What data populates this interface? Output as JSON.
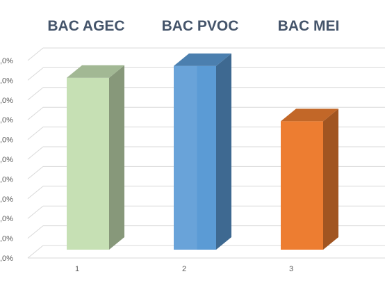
{
  "chart_data": {
    "type": "bar",
    "categories": [
      "1",
      "2",
      "3"
    ],
    "series_labels": [
      "BAC AGEC",
      "BAC PVOC",
      "BAC MEI"
    ],
    "values": [
      8.7,
      9.3,
      6.5
    ],
    "ylim": [
      0,
      10
    ],
    "ytick_labels": [
      ",0%",
      ",0%",
      ",0%",
      ",0%",
      ",0%",
      ",0%",
      ",0%",
      ",0%",
      ",0%",
      ",0%",
      ",0%"
    ],
    "colors": {
      "bar_1": "#c6e0b4",
      "bar_2": "#5b9bd5",
      "bar_3": "#ed7d31"
    },
    "grid": true,
    "legend": "none",
    "title": "",
    "xlabel": "",
    "ylabel": ""
  }
}
